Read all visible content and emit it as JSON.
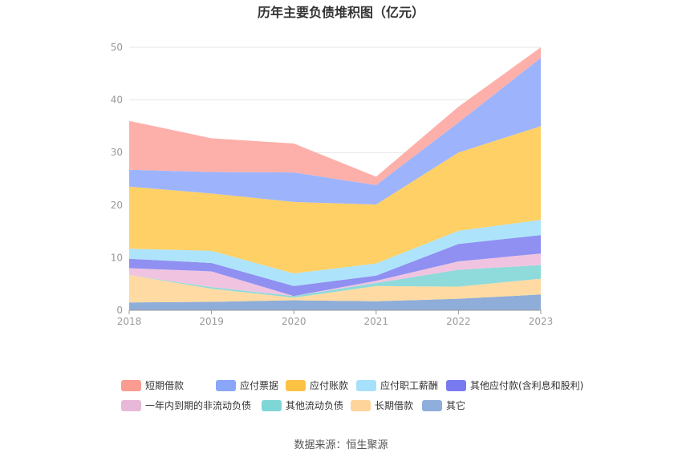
{
  "chart_data": {
    "type": "area",
    "stacked": true,
    "title": "历年主要负债堆积图（亿元）",
    "x": [
      "2018",
      "2019",
      "2020",
      "2021",
      "2022",
      "2023"
    ],
    "ylim": [
      0,
      50
    ],
    "yticks": [
      0,
      10,
      20,
      30,
      40,
      50
    ],
    "grid": true,
    "legend_position": "bottom",
    "series": [
      {
        "name": "其它",
        "color": "#8fadd9",
        "values": [
          1.5,
          1.6,
          1.9,
          1.7,
          2.2,
          3.0
        ]
      },
      {
        "name": "长期借款",
        "color": "#ffdba3",
        "values": [
          5.2,
          2.5,
          0.5,
          2.9,
          2.3,
          3.0
        ]
      },
      {
        "name": "其他流动负债",
        "color": "#8fdadb",
        "values": [
          0.0,
          0.3,
          0.3,
          0.6,
          3.2,
          2.6
        ]
      },
      {
        "name": "一年内到期的非流动负债",
        "color": "#f0c4e0",
        "values": [
          1.3,
          3.0,
          0.0,
          0.4,
          1.6,
          2.2
        ]
      },
      {
        "name": "其他应付款(含利息和股利)",
        "color": "#8f90f1",
        "values": [
          1.8,
          1.6,
          1.9,
          1.0,
          3.3,
          3.5
        ]
      },
      {
        "name": "应付职工薪酬",
        "color": "#aee4fb",
        "values": [
          1.9,
          2.3,
          2.4,
          2.3,
          2.5,
          2.9
        ]
      },
      {
        "name": "应付账款",
        "color": "#ffd066",
        "values": [
          11.8,
          10.9,
          13.6,
          11.2,
          14.9,
          17.8
        ]
      },
      {
        "name": "应付票据",
        "color": "#9db4fd",
        "values": [
          3.2,
          4.1,
          5.6,
          3.7,
          5.7,
          13.0
        ]
      },
      {
        "name": "短期借款",
        "color": "#fdb0aa",
        "values": [
          9.3,
          6.4,
          5.5,
          1.6,
          3.0,
          2.0
        ]
      }
    ],
    "legend_order": [
      "短期借款",
      "应付票据",
      "应付账款",
      "应付职工薪酬",
      "其他应付款(含利息和股利)",
      "一年内到期的非流动负债",
      "其他流动负债",
      "长期借款",
      "其它"
    ],
    "legend_colors": {
      "短期借款": "#fa9c90",
      "应付票据": "#8aa6f9",
      "应付账款": "#fcc243",
      "应付职工薪酬": "#a6e0fb",
      "其他应付款(含利息和股利)": "#7a7af0",
      "一年内到期的非流动负债": "#e8b8d8",
      "其他流动负债": "#7fd6d6",
      "长期借款": "#ffd49a",
      "其它": "#8eaedb"
    },
    "source": "数据来源：恒生聚源"
  }
}
